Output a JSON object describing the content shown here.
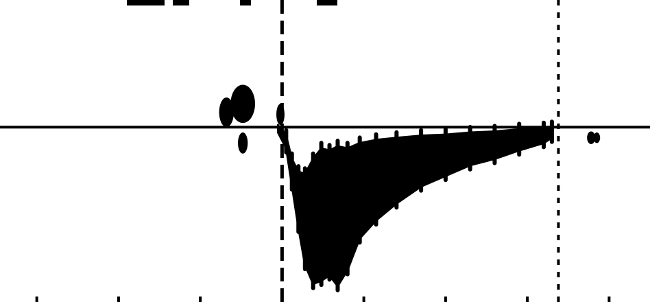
{
  "chart_data": {
    "type": "area",
    "title": "",
    "xlabel": "",
    "ylabel": "",
    "grid": false,
    "legend": "none",
    "baseline_y": 0,
    "x_range": [
      -3.45,
      4.5
    ],
    "y_range": [
      -1.65,
      1.2
    ],
    "x_ticks": [
      -3,
      -2,
      -1,
      0,
      1,
      2,
      3,
      4
    ],
    "dashed_marker_x": 0,
    "dotted_marker_x": 3.38,
    "series": [
      {
        "type": "area",
        "color": "#000000",
        "x": [
          -0.05,
          0.05,
          0.12,
          0.2,
          0.28,
          0.38,
          0.48,
          0.58,
          0.68,
          0.8,
          0.95,
          1.15,
          1.4,
          1.7,
          2.0,
          2.3,
          2.6,
          2.9,
          3.2,
          3.3
        ],
        "upper": [
          0.02,
          -0.08,
          -0.3,
          -0.42,
          -0.44,
          -0.3,
          -0.2,
          -0.22,
          -0.18,
          -0.2,
          -0.15,
          -0.12,
          -0.1,
          -0.08,
          -0.07,
          -0.05,
          -0.04,
          -0.02,
          -0.01,
          0
        ],
        "lower": [
          -0.05,
          -0.2,
          -0.55,
          -0.95,
          -1.3,
          -1.48,
          -1.45,
          -1.4,
          -1.5,
          -1.35,
          -1.05,
          -0.88,
          -0.72,
          -0.56,
          -0.46,
          -0.36,
          -0.3,
          -0.22,
          -0.15,
          -0.1
        ]
      }
    ],
    "blobs": [
      {
        "x": -0.68,
        "y": 0.14,
        "rx": 0.09,
        "ry": 0.14
      },
      {
        "x": -0.48,
        "y": 0.22,
        "rx": 0.15,
        "ry": 0.18
      },
      {
        "x": -0.02,
        "y": 0.12,
        "rx": 0.05,
        "ry": 0.1
      },
      {
        "x": -0.48,
        "y": -0.15,
        "rx": 0.06,
        "ry": 0.1
      },
      {
        "x": 3.78,
        "y": -0.1,
        "rx": 0.05,
        "ry": 0.06
      },
      {
        "x": 3.85,
        "y": -0.1,
        "rx": 0.04,
        "ry": 0.05
      }
    ]
  }
}
